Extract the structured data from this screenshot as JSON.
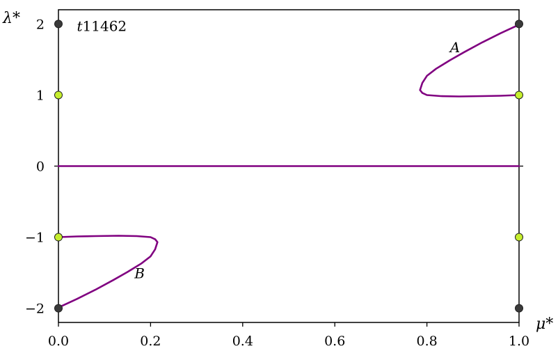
{
  "chart_data": {
    "type": "line",
    "title": "",
    "xlabel": "μ*",
    "ylabel": "λ*",
    "xlim": [
      0.0,
      1.0
    ],
    "ylim": [
      -2.2,
      2.2
    ],
    "grid": false,
    "x_ticks": [
      {
        "value": 0.0,
        "label": "0.0"
      },
      {
        "value": 0.2,
        "label": "0.2"
      },
      {
        "value": 0.4,
        "label": "0.4"
      },
      {
        "value": 0.6,
        "label": "0.6"
      },
      {
        "value": 0.8,
        "label": "0.8"
      },
      {
        "value": 1.0,
        "label": "1.0"
      }
    ],
    "y_ticks": [
      {
        "value": 2,
        "label": "2"
      },
      {
        "value": 1,
        "label": "1"
      },
      {
        "value": 0,
        "label": "0"
      },
      {
        "value": -1,
        "label": "−1"
      },
      {
        "value": -2,
        "label": "−2"
      }
    ],
    "line_color": "#800080",
    "series": [
      {
        "id": "zero",
        "x": [
          0.0,
          1.0
        ],
        "y": [
          0.0,
          0.0
        ]
      },
      {
        "id": "A",
        "x": [
          1.0,
          0.96,
          0.92,
          0.88,
          0.85,
          0.82,
          0.8,
          0.79,
          0.785,
          0.79,
          0.8,
          0.83,
          0.87,
          0.92,
          0.96,
          1.0
        ],
        "y": [
          1.99,
          1.87,
          1.74,
          1.6,
          1.49,
          1.37,
          1.27,
          1.17,
          1.07,
          1.03,
          1.0,
          0.985,
          0.98,
          0.985,
          0.99,
          1.0
        ]
      },
      {
        "id": "B",
        "x": [
          0.0,
          0.04,
          0.08,
          0.12,
          0.15,
          0.18,
          0.2,
          0.21,
          0.215,
          0.21,
          0.2,
          0.17,
          0.13,
          0.08,
          0.04,
          0.0
        ],
        "y": [
          -1.99,
          -1.87,
          -1.74,
          -1.6,
          -1.49,
          -1.37,
          -1.27,
          -1.17,
          -1.07,
          -1.03,
          -1.0,
          -0.985,
          -0.98,
          -0.985,
          -0.99,
          -1.0
        ]
      }
    ],
    "markers": [
      {
        "x": 0.0,
        "y": 2,
        "color": "#3a3a3a"
      },
      {
        "x": 0.0,
        "y": 1,
        "color": "#c6ee2e"
      },
      {
        "x": 0.0,
        "y": -1,
        "color": "#c6ee2e"
      },
      {
        "x": 0.0,
        "y": -2,
        "color": "#3a3a3a"
      },
      {
        "x": 1.0,
        "y": 2,
        "color": "#3a3a3a"
      },
      {
        "x": 1.0,
        "y": 1,
        "color": "#c6ee2e"
      },
      {
        "x": 1.0,
        "y": -1,
        "color": "#c6ee2e"
      },
      {
        "x": 1.0,
        "y": -2,
        "color": "#3a3a3a"
      }
    ],
    "annotations": [
      {
        "text": "t11462",
        "x": 0.04,
        "y": 1.9,
        "italic_first_char": true
      },
      {
        "text": "A",
        "x": 0.85,
        "y": 1.6,
        "italic": true
      },
      {
        "text": "B",
        "x": 0.165,
        "y": -1.58,
        "italic": true
      }
    ]
  }
}
